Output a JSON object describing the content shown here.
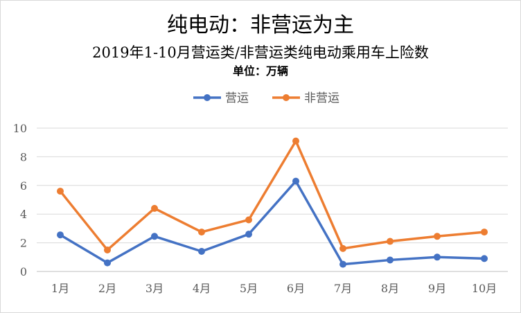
{
  "chart_data": {
    "type": "line",
    "title": "纯电动：非营运为主",
    "subtitle": "2019年1-10月营运类/非营运类纯电动乘用车上险数",
    "unit": "单位：万辆",
    "categories": [
      "1月",
      "2月",
      "3月",
      "4月",
      "5月",
      "6月",
      "7月",
      "8月",
      "9月",
      "10月"
    ],
    "series": [
      {
        "name": "营运",
        "color": "#4472c4",
        "values": [
          2.55,
          0.6,
          2.45,
          1.4,
          2.6,
          6.3,
          0.5,
          0.8,
          1.0,
          0.9
        ]
      },
      {
        "name": "非营运",
        "color": "#ed7d31",
        "values": [
          5.6,
          1.5,
          4.4,
          2.75,
          3.6,
          9.1,
          1.6,
          2.1,
          2.45,
          2.75
        ]
      }
    ],
    "ylim": [
      0,
      10
    ],
    "yticks": [
      0,
      2,
      4,
      6,
      8,
      10
    ],
    "grid": true,
    "legend": "top-center"
  }
}
